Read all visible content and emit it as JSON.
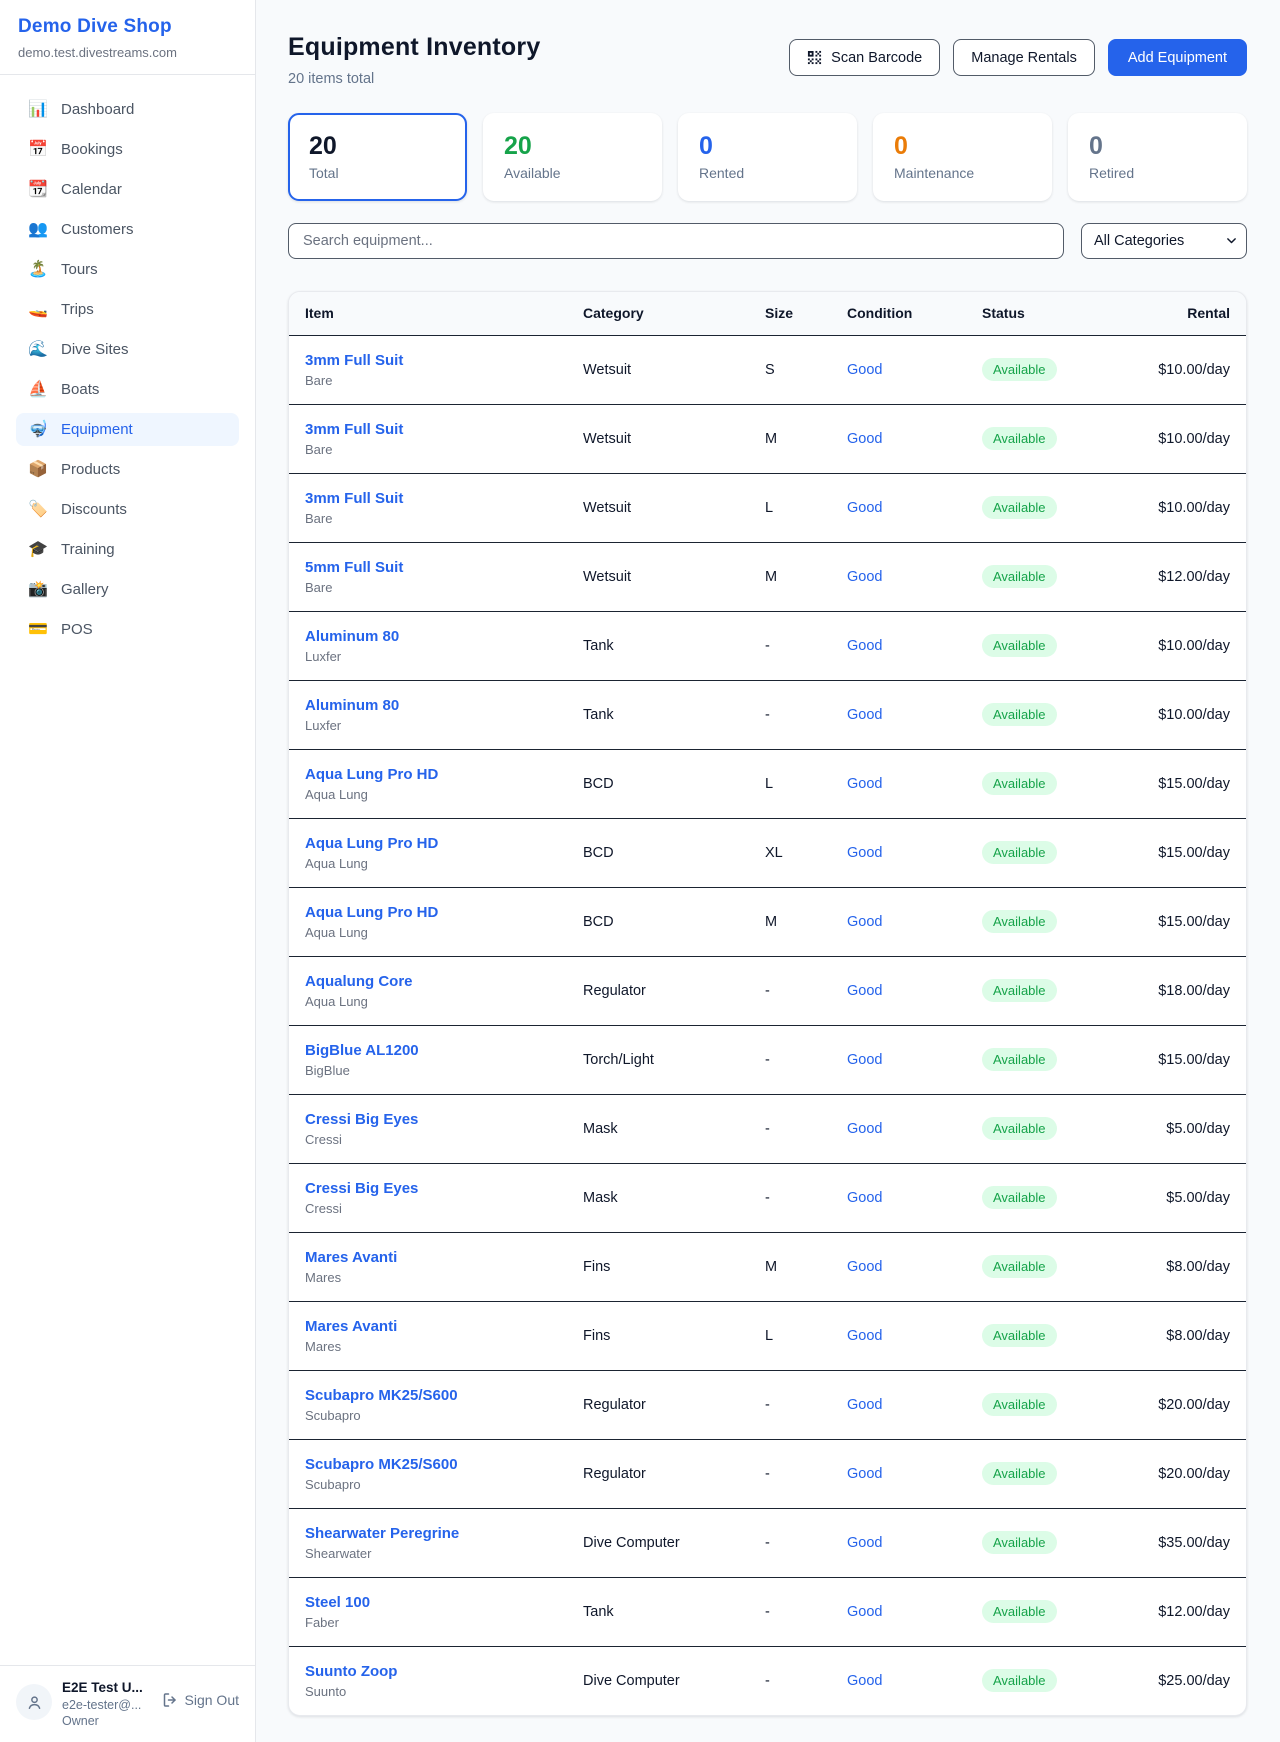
{
  "sidebar": {
    "brand": {
      "name": "Demo Dive Shop",
      "domain": "demo.test.divestreams.com"
    },
    "items": [
      {
        "icon": "📊",
        "icon_name": "dashboard-icon",
        "label": "Dashboard",
        "active": false
      },
      {
        "icon": "📅",
        "icon_name": "bookings-icon",
        "label": "Bookings",
        "active": false
      },
      {
        "icon": "📆",
        "icon_name": "calendar-icon",
        "label": "Calendar",
        "active": false
      },
      {
        "icon": "👥",
        "icon_name": "customers-icon",
        "label": "Customers",
        "active": false
      },
      {
        "icon": "🏝️",
        "icon_name": "tours-icon",
        "label": "Tours",
        "active": false
      },
      {
        "icon": "🚤",
        "icon_name": "trips-icon",
        "label": "Trips",
        "active": false
      },
      {
        "icon": "🌊",
        "icon_name": "dive-sites-icon",
        "label": "Dive Sites",
        "active": false
      },
      {
        "icon": "⛵",
        "icon_name": "boats-icon",
        "label": "Boats",
        "active": false
      },
      {
        "icon": "🤿",
        "icon_name": "equipment-icon",
        "label": "Equipment",
        "active": true
      },
      {
        "icon": "📦",
        "icon_name": "products-icon",
        "label": "Products",
        "active": false
      },
      {
        "icon": "🏷️",
        "icon_name": "discounts-icon",
        "label": "Discounts",
        "active": false
      },
      {
        "icon": "🎓",
        "icon_name": "training-icon",
        "label": "Training",
        "active": false
      },
      {
        "icon": "📸",
        "icon_name": "gallery-icon",
        "label": "Gallery",
        "active": false
      },
      {
        "icon": "💳",
        "icon_name": "pos-icon",
        "label": "POS",
        "active": false
      }
    ],
    "user": {
      "name": "E2E Test U...",
      "email": "e2e-tester@...",
      "role": "Owner",
      "signout_label": "Sign Out"
    }
  },
  "header": {
    "title": "Equipment Inventory",
    "subtitle": "20 items total",
    "scan_button": "Scan Barcode",
    "manage_button": "Manage Rentals",
    "add_button": "Add Equipment"
  },
  "stats": [
    {
      "value": "20",
      "label": "Total",
      "color": "#0f172a",
      "selected": true
    },
    {
      "value": "20",
      "label": "Available",
      "color": "#16a34a",
      "selected": false
    },
    {
      "value": "0",
      "label": "Rented",
      "color": "#2563eb",
      "selected": false
    },
    {
      "value": "0",
      "label": "Maintenance",
      "color": "#ea7c08",
      "selected": false
    },
    {
      "value": "0",
      "label": "Retired",
      "color": "#64748b",
      "selected": false
    }
  ],
  "filters": {
    "search_placeholder": "Search equipment...",
    "category_selected": "All Categories"
  },
  "table": {
    "columns": [
      "Item",
      "Category",
      "Size",
      "Condition",
      "Status",
      "Rental"
    ],
    "rows": [
      {
        "name": "3mm Full Suit",
        "brand": "Bare",
        "category": "Wetsuit",
        "size": "S",
        "condition": "Good",
        "status": "Available",
        "rental": "$10.00/day"
      },
      {
        "name": "3mm Full Suit",
        "brand": "Bare",
        "category": "Wetsuit",
        "size": "M",
        "condition": "Good",
        "status": "Available",
        "rental": "$10.00/day"
      },
      {
        "name": "3mm Full Suit",
        "brand": "Bare",
        "category": "Wetsuit",
        "size": "L",
        "condition": "Good",
        "status": "Available",
        "rental": "$10.00/day"
      },
      {
        "name": "5mm Full Suit",
        "brand": "Bare",
        "category": "Wetsuit",
        "size": "M",
        "condition": "Good",
        "status": "Available",
        "rental": "$12.00/day"
      },
      {
        "name": "Aluminum 80",
        "brand": "Luxfer",
        "category": "Tank",
        "size": "-",
        "condition": "Good",
        "status": "Available",
        "rental": "$10.00/day"
      },
      {
        "name": "Aluminum 80",
        "brand": "Luxfer",
        "category": "Tank",
        "size": "-",
        "condition": "Good",
        "status": "Available",
        "rental": "$10.00/day"
      },
      {
        "name": "Aqua Lung Pro HD",
        "brand": "Aqua Lung",
        "category": "BCD",
        "size": "L",
        "condition": "Good",
        "status": "Available",
        "rental": "$15.00/day"
      },
      {
        "name": "Aqua Lung Pro HD",
        "brand": "Aqua Lung",
        "category": "BCD",
        "size": "XL",
        "condition": "Good",
        "status": "Available",
        "rental": "$15.00/day"
      },
      {
        "name": "Aqua Lung Pro HD",
        "brand": "Aqua Lung",
        "category": "BCD",
        "size": "M",
        "condition": "Good",
        "status": "Available",
        "rental": "$15.00/day"
      },
      {
        "name": "Aqualung Core",
        "brand": "Aqua Lung",
        "category": "Regulator",
        "size": "-",
        "condition": "Good",
        "status": "Available",
        "rental": "$18.00/day"
      },
      {
        "name": "BigBlue AL1200",
        "brand": "BigBlue",
        "category": "Torch/Light",
        "size": "-",
        "condition": "Good",
        "status": "Available",
        "rental": "$15.00/day"
      },
      {
        "name": "Cressi Big Eyes",
        "brand": "Cressi",
        "category": "Mask",
        "size": "-",
        "condition": "Good",
        "status": "Available",
        "rental": "$5.00/day"
      },
      {
        "name": "Cressi Big Eyes",
        "brand": "Cressi",
        "category": "Mask",
        "size": "-",
        "condition": "Good",
        "status": "Available",
        "rental": "$5.00/day"
      },
      {
        "name": "Mares Avanti",
        "brand": "Mares",
        "category": "Fins",
        "size": "M",
        "condition": "Good",
        "status": "Available",
        "rental": "$8.00/day"
      },
      {
        "name": "Mares Avanti",
        "brand": "Mares",
        "category": "Fins",
        "size": "L",
        "condition": "Good",
        "status": "Available",
        "rental": "$8.00/day"
      },
      {
        "name": "Scubapro MK25/S600",
        "brand": "Scubapro",
        "category": "Regulator",
        "size": "-",
        "condition": "Good",
        "status": "Available",
        "rental": "$20.00/day"
      },
      {
        "name": "Scubapro MK25/S600",
        "brand": "Scubapro",
        "category": "Regulator",
        "size": "-",
        "condition": "Good",
        "status": "Available",
        "rental": "$20.00/day"
      },
      {
        "name": "Shearwater Peregrine",
        "brand": "Shearwater",
        "category": "Dive Computer",
        "size": "-",
        "condition": "Good",
        "status": "Available",
        "rental": "$35.00/day"
      },
      {
        "name": "Steel 100",
        "brand": "Faber",
        "category": "Tank",
        "size": "-",
        "condition": "Good",
        "status": "Available",
        "rental": "$12.00/day"
      },
      {
        "name": "Suunto Zoop",
        "brand": "Suunto",
        "category": "Dive Computer",
        "size": "-",
        "condition": "Good",
        "status": "Available",
        "rental": "$25.00/day"
      }
    ]
  },
  "colors": {
    "accent": "#2563eb",
    "available_green": "#16a34a",
    "badge_bg": "#dcfce7",
    "maintenance_orange": "#ea7c08",
    "retired_gray": "#64748b",
    "row_border": "#1b2432"
  }
}
